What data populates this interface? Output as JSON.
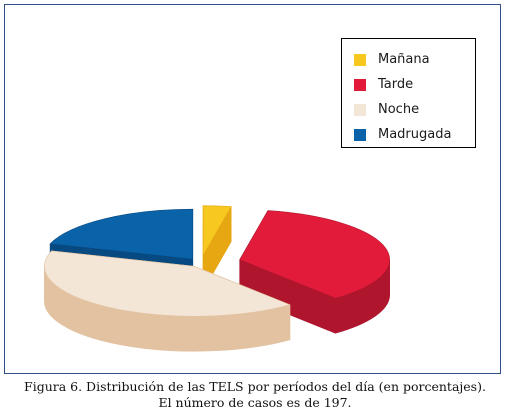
{
  "chart_data": {
    "type": "pie",
    "style": "3d-exploded",
    "categories": [
      "Mañana",
      "Tarde",
      "Noche",
      "Madrugada"
    ],
    "values": [
      3,
      36,
      41,
      20
    ],
    "unit": "%",
    "colors": {
      "top": [
        "#f6c820",
        "#e31b3a",
        "#f4e6d6",
        "#0a62a8"
      ],
      "side": [
        "#e6a712",
        "#b0152e",
        "#e2c2a1",
        "#074a82"
      ]
    },
    "legend": {
      "position": "top-right"
    }
  },
  "caption": {
    "line1": "Figura 6. Distribución de las TELS por períodos del día (en porcentajes).",
    "line2": "El número de casos es de 197."
  }
}
